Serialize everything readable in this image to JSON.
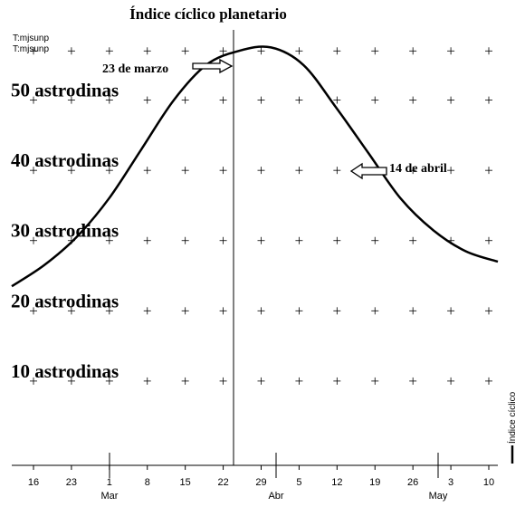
{
  "chart_data": {
    "type": "line",
    "title": "Índice cíclico planetario",
    "top_left_labels": [
      "T:mjsunp",
      "T:mjsunp"
    ],
    "series": [
      {
        "name": "Índice cíclico",
        "x": [
          "2009-03-13",
          "2009-03-17",
          "2009-03-21",
          "2009-03-25",
          "2009-03-29",
          "2009-04-02",
          "2009-04-06",
          "2009-04-10",
          "2009-04-14",
          "2009-04-18",
          "2009-04-22",
          "2009-04-26",
          "2009-04-30",
          "2009-05-04",
          "2009-05-08",
          "2009-05-13"
        ],
        "y": [
          23.5,
          26.5,
          30.5,
          36,
          43,
          50,
          55,
          57,
          57.5,
          55,
          49,
          42.5,
          36,
          31.5,
          28.5,
          27
        ]
      }
    ],
    "x_ticks": [
      "16",
      "23",
      "1",
      "8",
      "15",
      "22",
      "29",
      "5",
      "12",
      "19",
      "26",
      "3",
      "10"
    ],
    "month_labels": [
      "Mar",
      "Abr",
      "May"
    ],
    "y_level_labels": [
      "50 astrodinas",
      "40 astrodinas",
      "30 astrodinas",
      "20 astrodinas",
      "10 astrodinas"
    ],
    "y_level_values": [
      50,
      40,
      30,
      20,
      10
    ],
    "annotations": [
      {
        "text": "23 de marzo",
        "x": "2009-03-23"
      },
      {
        "text": "14 de abril",
        "x": "2009-04-14"
      }
    ],
    "xlim": [
      "2009-03-13",
      "2009-05-13"
    ],
    "ylim": [
      -2,
      60
    ],
    "grid": "cross-markers",
    "legend": "right-bottom-vertical",
    "legend_label": "Índice cíclico"
  }
}
